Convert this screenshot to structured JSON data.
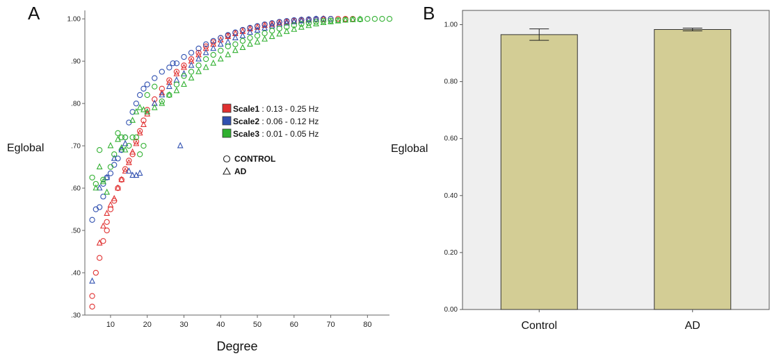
{
  "panels": {
    "a_label": "A",
    "b_label": "B"
  },
  "chart_data": [
    {
      "type": "scatter",
      "panel": "A",
      "xlabel": "Degree",
      "ylabel": "Eglobal",
      "xlim": [
        3,
        86
      ],
      "ylim": [
        0.3,
        1.02
      ],
      "xticks": [
        "10",
        "20",
        "30",
        "40",
        "50",
        "60",
        "70",
        "80"
      ],
      "yticks": [
        ".30",
        ".40",
        ".50",
        ".60",
        ".70",
        ".80",
        ".90",
        "1.00"
      ],
      "grid": false,
      "legend_position": "center-right",
      "scales": [
        {
          "name": "Scale1",
          "range": " : 0.13 - 0.25 Hz",
          "color": "#e03030"
        },
        {
          "name": "Scale2",
          "range": " : 0.06 - 0.12 Hz",
          "color": "#3050b0"
        },
        {
          "name": "Scale3",
          "range": " : 0.01 - 0.05 Hz",
          "color": "#30b030"
        }
      ],
      "groups": [
        {
          "name": "CONTROL",
          "marker": "circle"
        },
        {
          "name": "AD",
          "marker": "triangle"
        }
      ],
      "series": [
        {
          "scale": "Scale1",
          "group": "CONTROL",
          "points": [
            [
              5,
              0.32
            ],
            [
              5,
              0.345
            ],
            [
              6,
              0.4
            ],
            [
              7,
              0.435
            ],
            [
              8,
              0.475
            ],
            [
              9,
              0.5
            ],
            [
              9,
              0.52
            ],
            [
              10,
              0.55
            ],
            [
              11,
              0.57
            ],
            [
              12,
              0.6
            ],
            [
              13,
              0.62
            ],
            [
              14,
              0.645
            ],
            [
              15,
              0.665
            ],
            [
              16,
              0.68
            ],
            [
              17,
              0.71
            ],
            [
              18,
              0.735
            ],
            [
              19,
              0.76
            ],
            [
              20,
              0.785
            ],
            [
              22,
              0.81
            ],
            [
              24,
              0.835
            ],
            [
              26,
              0.855
            ],
            [
              28,
              0.875
            ],
            [
              30,
              0.89
            ],
            [
              32,
              0.905
            ],
            [
              34,
              0.92
            ],
            [
              36,
              0.935
            ],
            [
              38,
              0.945
            ],
            [
              40,
              0.955
            ],
            [
              42,
              0.96
            ],
            [
              44,
              0.967
            ],
            [
              46,
              0.973
            ],
            [
              48,
              0.978
            ],
            [
              50,
              0.982
            ],
            [
              52,
              0.986
            ],
            [
              54,
              0.989
            ],
            [
              56,
              0.992
            ],
            [
              58,
              0.994
            ],
            [
              60,
              0.996
            ],
            [
              62,
              0.997
            ],
            [
              64,
              0.998
            ],
            [
              66,
              0.999
            ],
            [
              68,
              0.999
            ],
            [
              70,
              1.0
            ],
            [
              72,
              1.0
            ],
            [
              74,
              1.0
            ],
            [
              76,
              1.0
            ]
          ]
        },
        {
          "scale": "Scale1",
          "group": "AD",
          "points": [
            [
              7,
              0.47
            ],
            [
              8,
              0.51
            ],
            [
              9,
              0.54
            ],
            [
              10,
              0.56
            ],
            [
              11,
              0.575
            ],
            [
              12,
              0.6
            ],
            [
              13,
              0.62
            ],
            [
              14,
              0.64
            ],
            [
              15,
              0.66
            ],
            [
              16,
              0.685
            ],
            [
              17,
              0.705
            ],
            [
              18,
              0.73
            ],
            [
              19,
              0.75
            ],
            [
              20,
              0.775
            ],
            [
              22,
              0.8
            ],
            [
              24,
              0.825
            ],
            [
              26,
              0.85
            ],
            [
              28,
              0.87
            ],
            [
              30,
              0.885
            ],
            [
              32,
              0.9
            ],
            [
              34,
              0.915
            ],
            [
              36,
              0.93
            ],
            [
              38,
              0.94
            ],
            [
              40,
              0.95
            ],
            [
              42,
              0.958
            ],
            [
              44,
              0.965
            ],
            [
              46,
              0.97
            ],
            [
              48,
              0.976
            ],
            [
              50,
              0.98
            ],
            [
              52,
              0.984
            ],
            [
              54,
              0.987
            ],
            [
              56,
              0.99
            ],
            [
              58,
              0.993
            ],
            [
              60,
              0.995
            ],
            [
              62,
              0.997
            ],
            [
              64,
              0.998
            ],
            [
              66,
              0.999
            ],
            [
              68,
              1.0
            ]
          ]
        },
        {
          "scale": "Scale2",
          "group": "CONTROL",
          "points": [
            [
              5,
              0.525
            ],
            [
              6,
              0.55
            ],
            [
              7,
              0.555
            ],
            [
              8,
              0.58
            ],
            [
              8,
              0.61
            ],
            [
              9,
              0.625
            ],
            [
              10,
              0.635
            ],
            [
              11,
              0.655
            ],
            [
              12,
              0.67
            ],
            [
              13,
              0.69
            ],
            [
              14,
              0.72
            ],
            [
              15,
              0.755
            ],
            [
              16,
              0.78
            ],
            [
              17,
              0.8
            ],
            [
              18,
              0.82
            ],
            [
              19,
              0.835
            ],
            [
              20,
              0.845
            ],
            [
              22,
              0.86
            ],
            [
              24,
              0.875
            ],
            [
              26,
              0.885
            ],
            [
              27,
              0.895
            ],
            [
              28,
              0.895
            ],
            [
              30,
              0.91
            ],
            [
              32,
              0.92
            ],
            [
              34,
              0.93
            ],
            [
              36,
              0.94
            ],
            [
              38,
              0.948
            ],
            [
              40,
              0.955
            ],
            [
              42,
              0.962
            ],
            [
              44,
              0.968
            ],
            [
              46,
              0.974
            ],
            [
              48,
              0.979
            ],
            [
              50,
              0.983
            ],
            [
              52,
              0.987
            ],
            [
              54,
              0.99
            ],
            [
              56,
              0.993
            ],
            [
              58,
              0.995
            ],
            [
              60,
              0.997
            ],
            [
              62,
              0.998
            ],
            [
              64,
              0.999
            ],
            [
              66,
              1.0
            ],
            [
              68,
              1.0
            ],
            [
              70,
              1.0
            ]
          ]
        },
        {
          "scale": "Scale2",
          "group": "AD",
          "points": [
            [
              5,
              0.38
            ],
            [
              7,
              0.6
            ],
            [
              9,
              0.625
            ],
            [
              11,
              0.67
            ],
            [
              13,
              0.69
            ],
            [
              14,
              0.705
            ],
            [
              15,
              0.64
            ],
            [
              16,
              0.63
            ],
            [
              17,
              0.63
            ],
            [
              18,
              0.635
            ],
            [
              20,
              0.78
            ],
            [
              22,
              0.8
            ],
            [
              24,
              0.82
            ],
            [
              26,
              0.84
            ],
            [
              28,
              0.855
            ],
            [
              29,
              0.7
            ],
            [
              30,
              0.87
            ],
            [
              32,
              0.89
            ],
            [
              34,
              0.905
            ],
            [
              36,
              0.92
            ],
            [
              38,
              0.93
            ],
            [
              40,
              0.94
            ],
            [
              42,
              0.945
            ],
            [
              44,
              0.955
            ],
            [
              46,
              0.96
            ],
            [
              48,
              0.968
            ],
            [
              50,
              0.973
            ],
            [
              52,
              0.978
            ],
            [
              54,
              0.983
            ],
            [
              56,
              0.987
            ],
            [
              58,
              0.99
            ],
            [
              60,
              0.993
            ],
            [
              62,
              0.995
            ],
            [
              64,
              0.997
            ],
            [
              66,
              0.999
            ]
          ]
        },
        {
          "scale": "Scale3",
          "group": "CONTROL",
          "points": [
            [
              5,
              0.625
            ],
            [
              6,
              0.61
            ],
            [
              7,
              0.69
            ],
            [
              8,
              0.62
            ],
            [
              10,
              0.65
            ],
            [
              11,
              0.68
            ],
            [
              12,
              0.73
            ],
            [
              13,
              0.72
            ],
            [
              14,
              0.72
            ],
            [
              15,
              0.7
            ],
            [
              16,
              0.72
            ],
            [
              17,
              0.72
            ],
            [
              18,
              0.68
            ],
            [
              19,
              0.7
            ],
            [
              20,
              0.82
            ],
            [
              22,
              0.84
            ],
            [
              24,
              0.805
            ],
            [
              26,
              0.82
            ],
            [
              28,
              0.845
            ],
            [
              30,
              0.865
            ],
            [
              32,
              0.875
            ],
            [
              34,
              0.89
            ],
            [
              36,
              0.905
            ],
            [
              38,
              0.915
            ],
            [
              40,
              0.925
            ],
            [
              42,
              0.935
            ],
            [
              44,
              0.94
            ],
            [
              46,
              0.948
            ],
            [
              48,
              0.955
            ],
            [
              50,
              0.96
            ],
            [
              52,
              0.966
            ],
            [
              54,
              0.972
            ],
            [
              56,
              0.977
            ],
            [
              58,
              0.981
            ],
            [
              60,
              0.985
            ],
            [
              62,
              0.988
            ],
            [
              64,
              0.99
            ],
            [
              66,
              0.993
            ],
            [
              68,
              0.995
            ],
            [
              70,
              0.996
            ],
            [
              72,
              0.997
            ],
            [
              74,
              0.998
            ],
            [
              76,
              0.999
            ],
            [
              78,
              0.999
            ],
            [
              80,
              1.0
            ],
            [
              82,
              1.0
            ],
            [
              84,
              1.0
            ],
            [
              86,
              1.0
            ]
          ]
        },
        {
          "scale": "Scale3",
          "group": "AD",
          "points": [
            [
              6,
              0.6
            ],
            [
              7,
              0.65
            ],
            [
              8,
              0.615
            ],
            [
              9,
              0.59
            ],
            [
              10,
              0.7
            ],
            [
              12,
              0.715
            ],
            [
              13,
              0.695
            ],
            [
              14,
              0.69
            ],
            [
              16,
              0.76
            ],
            [
              17,
              0.78
            ],
            [
              18,
              0.79
            ],
            [
              19,
              0.785
            ],
            [
              20,
              0.78
            ],
            [
              22,
              0.79
            ],
            [
              24,
              0.8
            ],
            [
              26,
              0.82
            ],
            [
              28,
              0.83
            ],
            [
              30,
              0.845
            ],
            [
              32,
              0.86
            ],
            [
              34,
              0.875
            ],
            [
              36,
              0.885
            ],
            [
              38,
              0.895
            ],
            [
              40,
              0.905
            ],
            [
              42,
              0.915
            ],
            [
              44,
              0.925
            ],
            [
              46,
              0.932
            ],
            [
              48,
              0.94
            ],
            [
              50,
              0.945
            ],
            [
              52,
              0.952
            ],
            [
              54,
              0.958
            ],
            [
              56,
              0.964
            ],
            [
              58,
              0.97
            ],
            [
              60,
              0.975
            ],
            [
              62,
              0.98
            ],
            [
              64,
              0.984
            ],
            [
              66,
              0.988
            ],
            [
              68,
              0.991
            ],
            [
              70,
              0.993
            ],
            [
              72,
              0.995
            ],
            [
              74,
              0.997
            ],
            [
              76,
              0.998
            ],
            [
              78,
              0.999
            ]
          ]
        }
      ]
    },
    {
      "type": "bar",
      "panel": "B",
      "ylabel": "Eglobal",
      "xlabel": "",
      "categories": [
        "Control",
        "AD"
      ],
      "values": [
        0.965,
        0.983
      ],
      "errors": [
        [
          0.945,
          0.985
        ],
        [
          0.978,
          0.988
        ]
      ],
      "ylim": [
        0.0,
        1.05
      ],
      "yticks": [
        "0.00",
        "0.20",
        "0.40",
        "0.60",
        "0.80",
        "1.00"
      ],
      "bar_color": "#d3cd95",
      "background_color": "#efefef",
      "grid": false
    }
  ]
}
